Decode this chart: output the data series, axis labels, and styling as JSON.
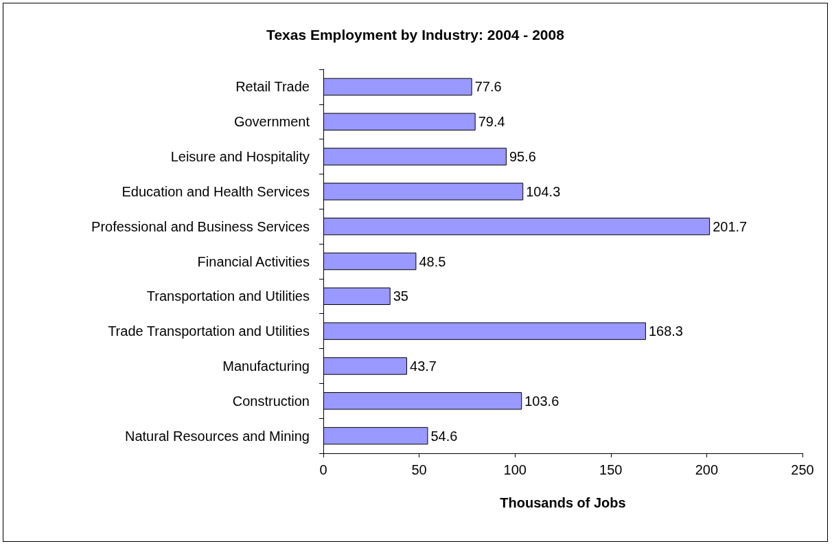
{
  "chart_data": {
    "type": "bar",
    "orientation": "horizontal",
    "title": "Texas Employment by Industry: 2004 - 2008",
    "xlabel": "Thousands of Jobs",
    "categories": [
      "Retail Trade",
      "Government",
      "Leisure and Hospitality",
      "Education and Health Services",
      "Professional and Business Services",
      "Financial Activities",
      "Transportation and Utilities",
      "Trade Transportation and Utilities",
      "Manufacturing",
      "Construction",
      "Natural Resources and Mining"
    ],
    "values": [
      77.6,
      79.4,
      95.6,
      104.3,
      201.7,
      48.5,
      35,
      168.3,
      43.7,
      103.6,
      54.6
    ],
    "color": "#9999ff",
    "xlim": [
      0,
      250
    ],
    "xticks": [
      0,
      50,
      100,
      150,
      200,
      250
    ],
    "data_labels": true,
    "grid": false
  }
}
